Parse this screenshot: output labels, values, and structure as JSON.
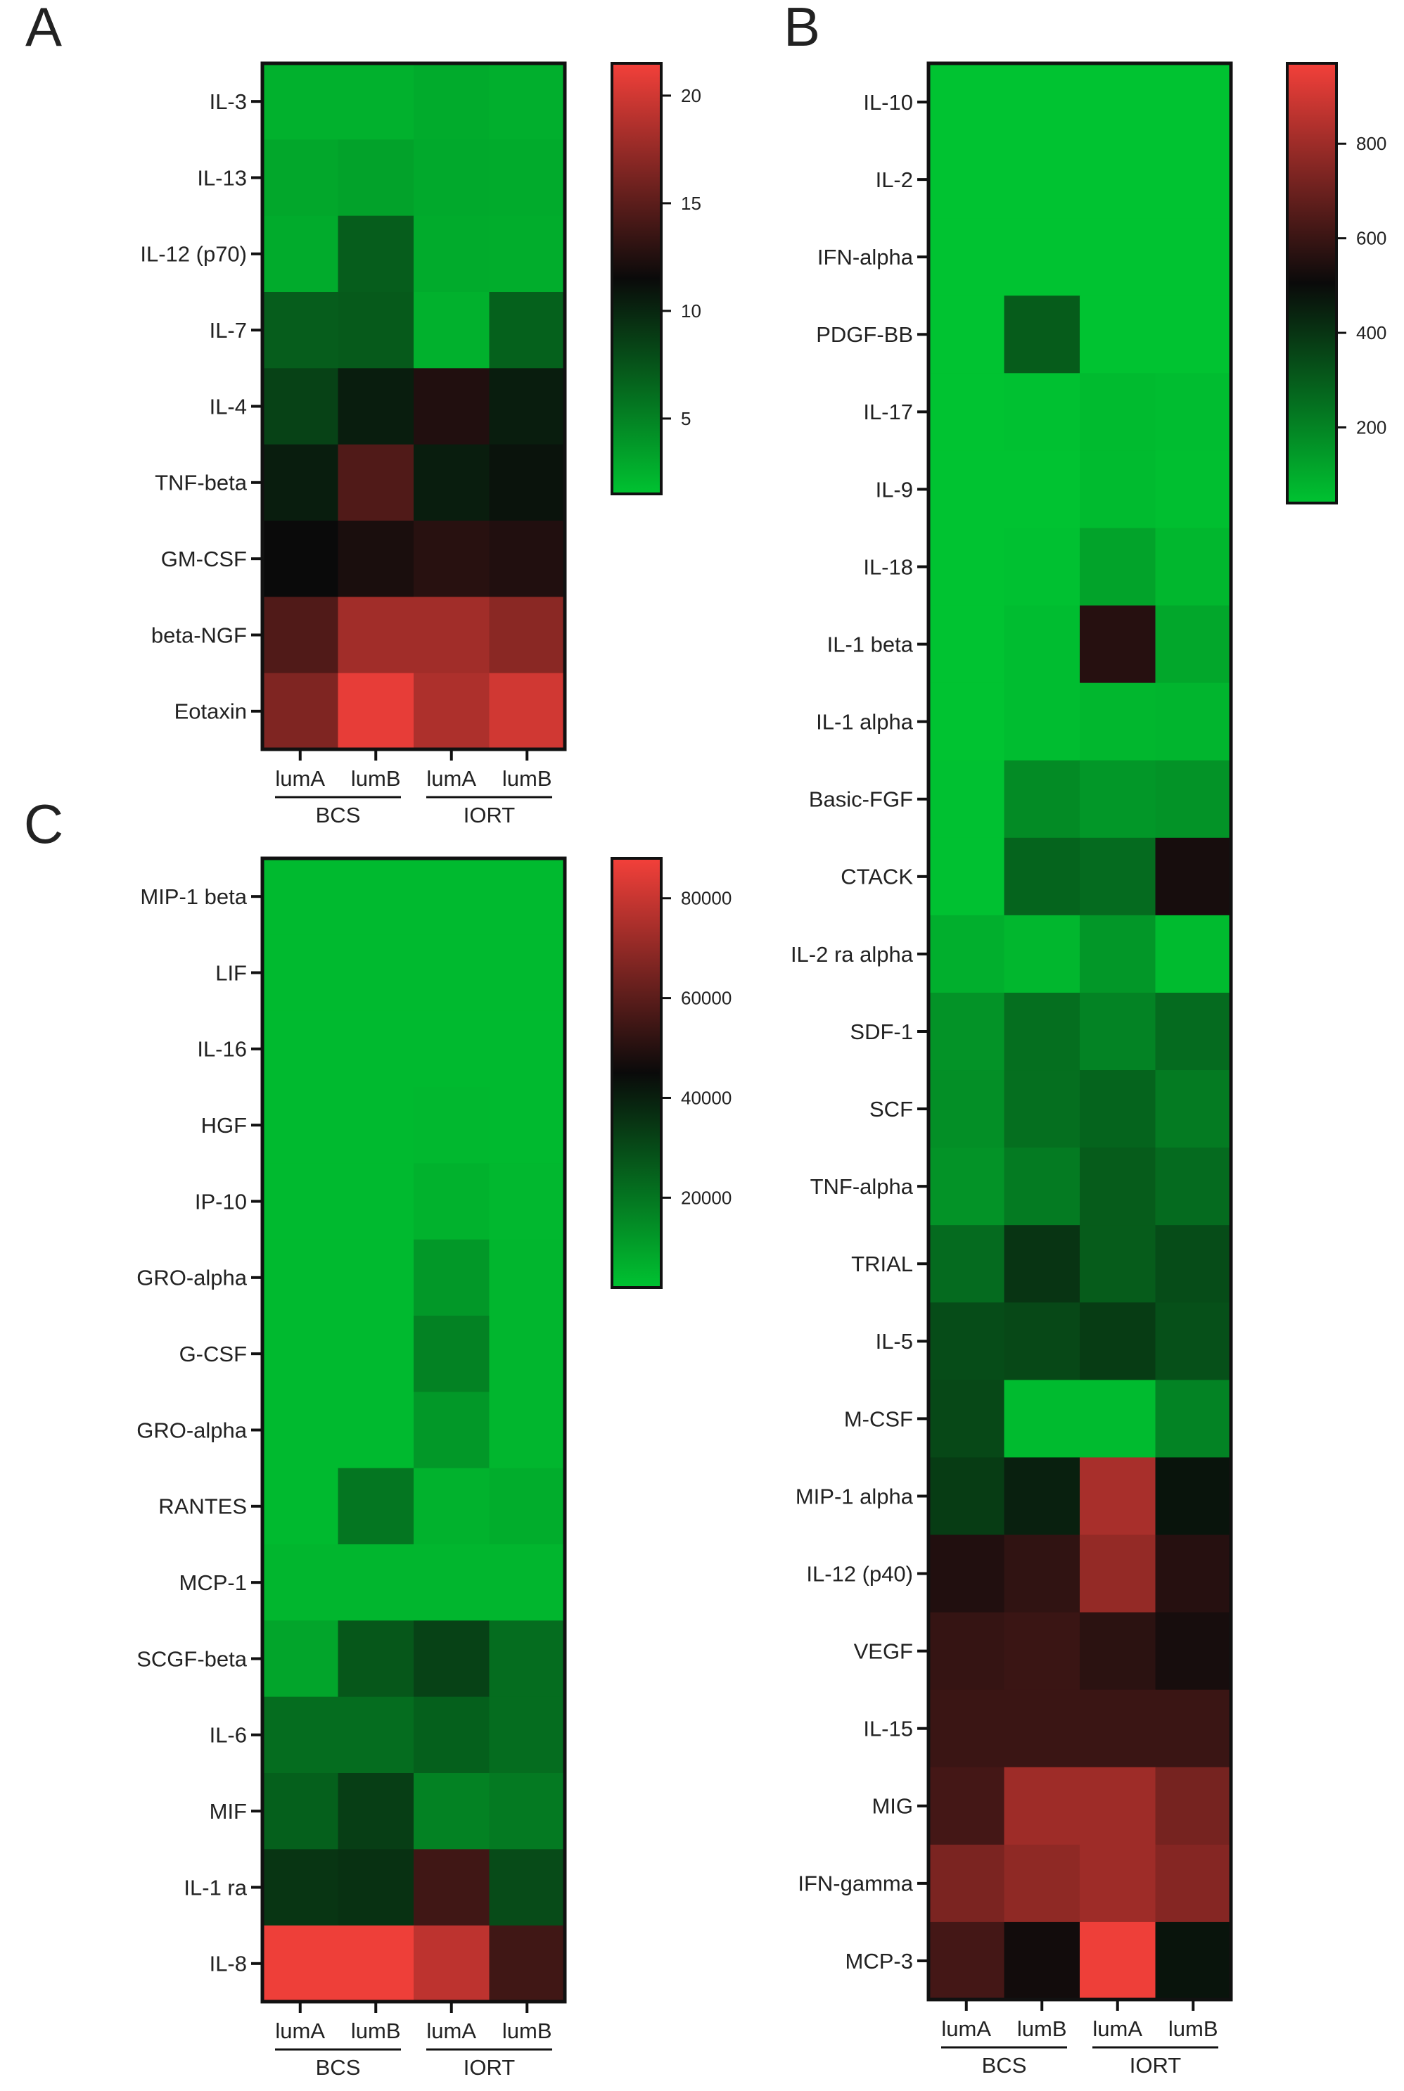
{
  "colors": {
    "low": "#00c331",
    "mid": "#0a0a0a",
    "high": "#f3403a"
  },
  "chart_data": [
    {
      "panel": "A",
      "type": "heatmap",
      "columns": [
        "lumA",
        "lumB",
        "lumA",
        "lumB"
      ],
      "groups": [
        "BCS",
        "IORT"
      ],
      "rows": [
        "IL-3",
        "IL-13",
        "IL-12 (p70)",
        "IL-7",
        "IL-4",
        "TNF-beta",
        "GM-CSF",
        "beta-NGF",
        "Eotaxin"
      ],
      "values": [
        [
          2.5,
          2.5,
          2.8,
          2.6
        ],
        [
          3.0,
          3.3,
          2.9,
          2.8
        ],
        [
          2.8,
          7.0,
          2.8,
          2.7
        ],
        [
          7.0,
          7.2,
          2.5,
          6.8
        ],
        [
          8.5,
          10.5,
          12.5,
          10.5
        ],
        [
          10.5,
          14.5,
          10.5,
          11.0
        ],
        [
          11.5,
          12.2,
          12.8,
          12.5
        ],
        [
          14.5,
          18.0,
          18.0,
          17.0
        ],
        [
          16.5,
          21.0,
          18.5,
          20.0
        ]
      ],
      "colorbar": {
        "min": 1.5,
        "max": 21.5,
        "ticks": [
          5,
          10,
          15,
          20
        ]
      }
    },
    {
      "panel": "B",
      "type": "heatmap",
      "columns": [
        "lumA",
        "lumB",
        "lumA",
        "lumB"
      ],
      "groups": [
        "BCS",
        "IORT"
      ],
      "rows": [
        "IL-10",
        "IL-2",
        "IFN-alpha",
        "PDGF-BB",
        "IL-17",
        "IL-9",
        "IL-18",
        "IL-1 beta",
        "IL-1 alpha",
        "Basic-FGF",
        "CTACK",
        "IL-2 ra alpha",
        "SDF-1",
        "SCF",
        "TNF-alpha",
        "TRIAL",
        "IL-5",
        "M-CSF",
        "MIP-1 alpha",
        "IL-12 (p40)",
        "VEGF",
        "IL-15",
        "MIG",
        "IFN-gamma",
        "MCP-3"
      ],
      "values": [
        [
          20,
          20,
          25,
          25
        ],
        [
          20,
          22,
          30,
          30
        ],
        [
          20,
          25,
          35,
          30
        ],
        [
          20,
          300,
          40,
          40
        ],
        [
          25,
          45,
          60,
          55
        ],
        [
          25,
          40,
          60,
          50
        ],
        [
          30,
          45,
          120,
          70
        ],
        [
          35,
          55,
          560,
          110
        ],
        [
          35,
          55,
          70,
          75
        ],
        [
          45,
          180,
          150,
          160
        ],
        [
          45,
          280,
          260,
          530
        ],
        [
          90,
          70,
          150,
          60
        ],
        [
          160,
          250,
          200,
          260
        ],
        [
          170,
          250,
          280,
          220
        ],
        [
          160,
          220,
          300,
          260
        ],
        [
          260,
          400,
          300,
          340
        ],
        [
          340,
          350,
          380,
          330
        ],
        [
          350,
          60,
          60,
          200
        ],
        [
          380,
          450,
          820,
          480
        ],
        [
          550,
          580,
          780,
          560
        ],
        [
          590,
          600,
          570,
          530
        ],
        [
          600,
          600,
          600,
          600
        ],
        [
          620,
          800,
          800,
          720
        ],
        [
          730,
          770,
          800,
          750
        ],
        [
          620,
          520,
          960,
          480
        ]
      ],
      "colorbar": {
        "min": 40,
        "max": 970,
        "ticks": [
          200,
          400,
          600,
          800
        ]
      }
    },
    {
      "panel": "C",
      "type": "heatmap",
      "columns": [
        "lumA",
        "lumB",
        "lumA",
        "lumB"
      ],
      "groups": [
        "BCS",
        "IORT"
      ],
      "rows": [
        "MIP-1 beta",
        "LIF",
        "IL-16",
        "HGF",
        "IP-10",
        "GRO-alpha",
        "G-CSF",
        "GRO-alpha",
        "RANTES",
        "MCP-1",
        "SCGF-beta",
        "IL-6",
        "MIF",
        "IL-1 ra",
        "IL-8"
      ],
      "values": [
        [
          4000,
          4000,
          4000,
          4000
        ],
        [
          4000,
          4000,
          4000,
          4000
        ],
        [
          4000,
          4000,
          4000,
          4000
        ],
        [
          4000,
          4000,
          4500,
          4000
        ],
        [
          4000,
          4000,
          6000,
          4500
        ],
        [
          4000,
          4000,
          12000,
          5000
        ],
        [
          4000,
          4000,
          17000,
          5000
        ],
        [
          4000,
          4000,
          12000,
          5000
        ],
        [
          4000,
          20000,
          6000,
          7000
        ],
        [
          5000,
          5000,
          5000,
          5000
        ],
        [
          9000,
          27000,
          32000,
          22000
        ],
        [
          22000,
          22000,
          25000,
          22000
        ],
        [
          25000,
          33000,
          17000,
          19000
        ],
        [
          35000,
          36000,
          55000,
          30000
        ],
        [
          87000,
          87000,
          78000,
          55000
        ]
      ],
      "colorbar": {
        "min": 2000,
        "max": 88000,
        "ticks": [
          20000,
          40000,
          60000,
          80000
        ]
      }
    }
  ]
}
